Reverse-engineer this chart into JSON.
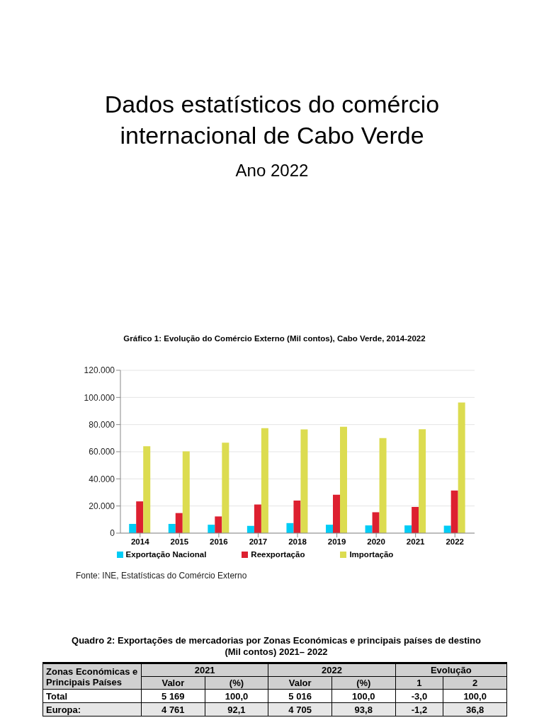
{
  "chart_data": [
    {
      "type": "other",
      "title": "Dados estatísticos do comércio internacional de Cabo Verde",
      "subtitle": "Ano 2022"
    },
    {
      "type": "bar",
      "title": "Gráfico 1: Evolução do Comércio Externo (Mil contos), Cabo Verde, 2014-2022",
      "categories": [
        "2014",
        "2015",
        "2016",
        "2017",
        "2018",
        "2019",
        "2020",
        "2021",
        "2022"
      ],
      "series": [
        {
          "name": "Exportação Nacional",
          "color": "#00ccf5",
          "values": [
            6800,
            6800,
            6200,
            5300,
            7400,
            6200,
            5700,
            5700,
            5500
          ]
        },
        {
          "name": "Reexportação",
          "color": "#dd2030",
          "values": [
            23400,
            14800,
            12300,
            21100,
            24000,
            28300,
            15400,
            19300,
            31400
          ]
        },
        {
          "name": "Importação",
          "color": "#dcdc50",
          "values": [
            64100,
            60200,
            66700,
            77400,
            76400,
            78400,
            70000,
            76600,
            96300
          ]
        }
      ],
      "ylim": [
        0,
        120000
      ],
      "yticks": [
        0,
        {
          "value": 20000,
          "label": "20.000"
        },
        {
          "value": 40000,
          "label": "40.000"
        },
        {
          "value": 60000,
          "label": "60.000"
        },
        {
          "value": 80000,
          "label": "80.000"
        },
        {
          "value": 100000,
          "label": "100.000"
        },
        {
          "value": 120000,
          "label": "120.000"
        }
      ],
      "grid": "y",
      "legend": "bottom",
      "annotations": [
        "Fonte: INE, Estatísticas do Comércio Externo"
      ]
    },
    {
      "type": "other",
      "title": "Quadro 2: Exportações de mercadorias por Zonas Económicas e principais países de destino (Mil contos) 2021– 2022",
      "annotations": [
        "Zonas Económicas e Principais Países",
        "2021",
        "2022",
        "Evolução",
        "Valor",
        "(%)",
        "Valor",
        "(%)",
        "1",
        "2",
        "Total",
        "5 169",
        "100,0",
        "5 016",
        "100,0",
        "-3,0",
        "100,0",
        "Europa:",
        "4 761",
        "92,1",
        "4 705",
        "93,8",
        "-1,2",
        "36,8"
      ]
    }
  ]
}
